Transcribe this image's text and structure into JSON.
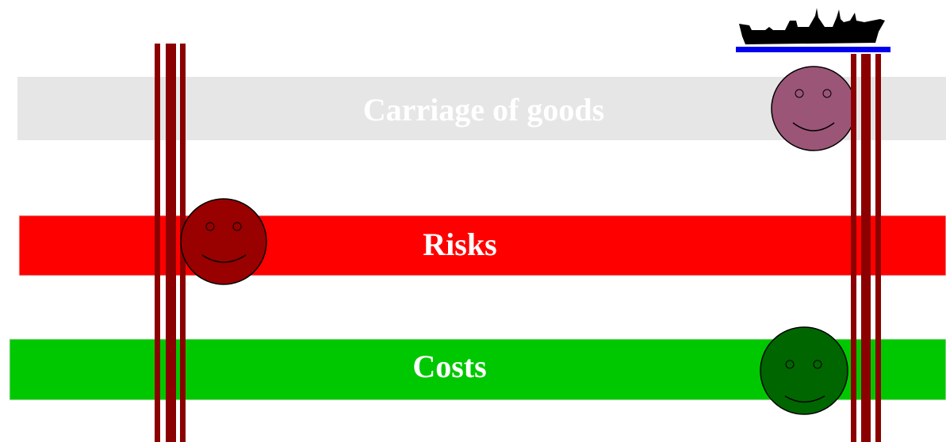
{
  "bands": [
    {
      "label": "Carriage of goods"
    },
    {
      "label": "Risks"
    },
    {
      "label": "Costs"
    }
  ]
}
